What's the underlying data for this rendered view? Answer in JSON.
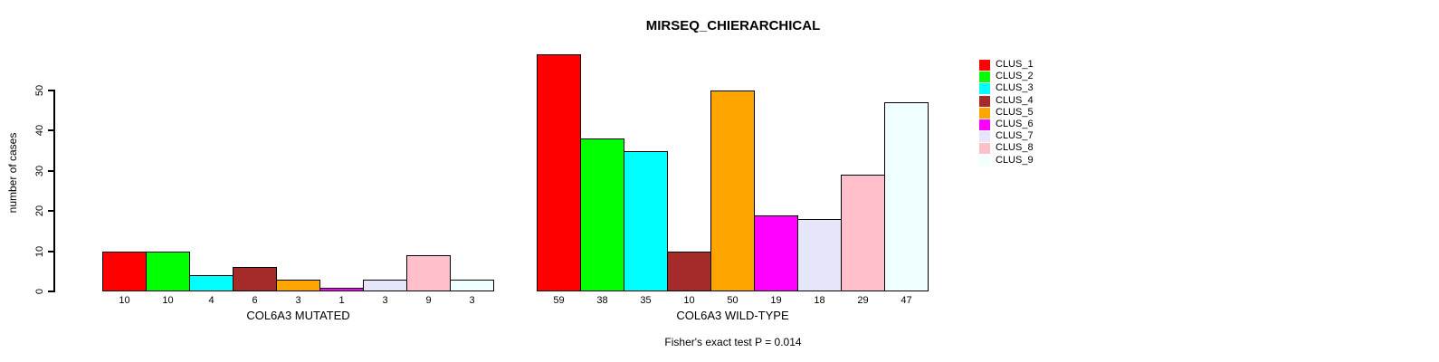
{
  "chart_data": {
    "type": "bar",
    "title": "MIRSEQ_CHIERARCHICAL",
    "ylabel": "number of cases",
    "footer": "Fisher's exact test P = 0.014",
    "yticks": [
      0,
      10,
      20,
      30,
      40,
      50
    ],
    "ylim": [
      0,
      59
    ],
    "grid": false,
    "legend_position": "top-right",
    "categories": [
      "COL6A3 MUTATED",
      "COL6A3 WILD-TYPE"
    ],
    "groups": [
      {
        "label": "COL6A3 MUTATED",
        "values": [
          10,
          10,
          4,
          6,
          3,
          1,
          3,
          9,
          3
        ]
      },
      {
        "label": "COL6A3 WILD-TYPE",
        "values": [
          59,
          38,
          35,
          10,
          50,
          19,
          18,
          29,
          47
        ]
      }
    ],
    "legend": [
      {
        "label": "CLUS_1",
        "color": "#FF0000"
      },
      {
        "label": "CLUS_2",
        "color": "#00FF00"
      },
      {
        "label": "CLUS_3",
        "color": "#00FFFF"
      },
      {
        "label": "CLUS_4",
        "color": "#A52A2A"
      },
      {
        "label": "CLUS_5",
        "color": "#FFA500"
      },
      {
        "label": "CLUS_6",
        "color": "#FF00FF"
      },
      {
        "label": "CLUS_7",
        "color": "#E6E6FA"
      },
      {
        "label": "CLUS_8",
        "color": "#FFC0CB"
      },
      {
        "label": "CLUS_9",
        "color": "#F0FFFF"
      }
    ]
  }
}
